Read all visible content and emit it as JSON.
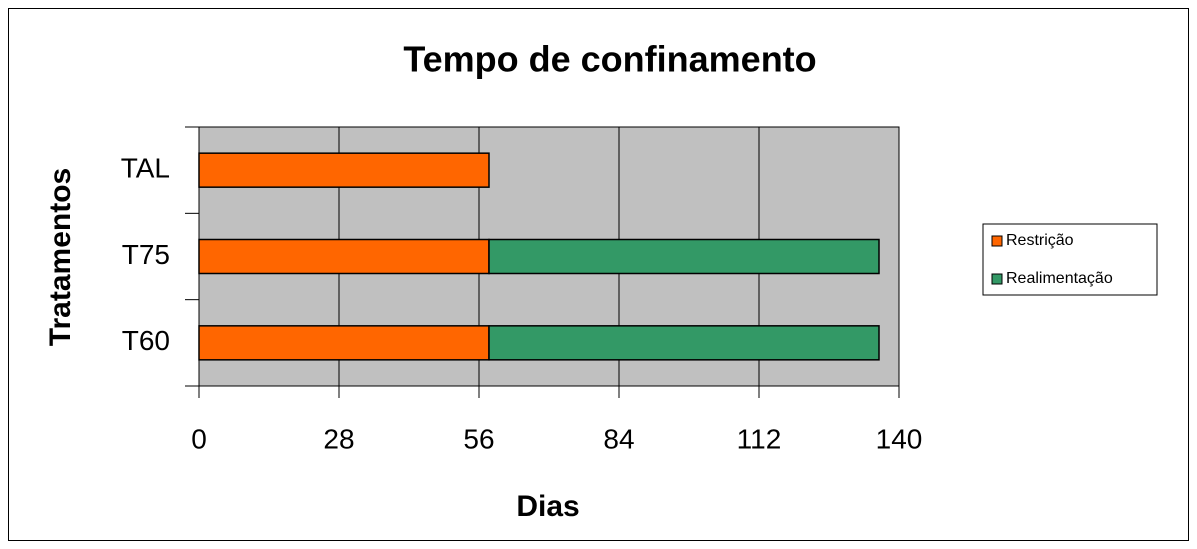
{
  "chart_data": {
    "type": "stacked_barh",
    "title": "Tempo de confinamento",
    "xlabel": "Dias",
    "ylabel": "Tratamentos",
    "categories": [
      "T60",
      "T75",
      "TAL"
    ],
    "series": [
      {
        "name": "Restrição",
        "color": "#ff6600",
        "values": [
          58,
          58,
          58
        ]
      },
      {
        "name": "Realimentação",
        "color": "#339966",
        "values": [
          78,
          78,
          0
        ]
      }
    ],
    "xlim": [
      0,
      140
    ],
    "xticks": [
      0,
      28,
      56,
      84,
      112,
      140
    ],
    "grid": true,
    "legend": "right"
  }
}
